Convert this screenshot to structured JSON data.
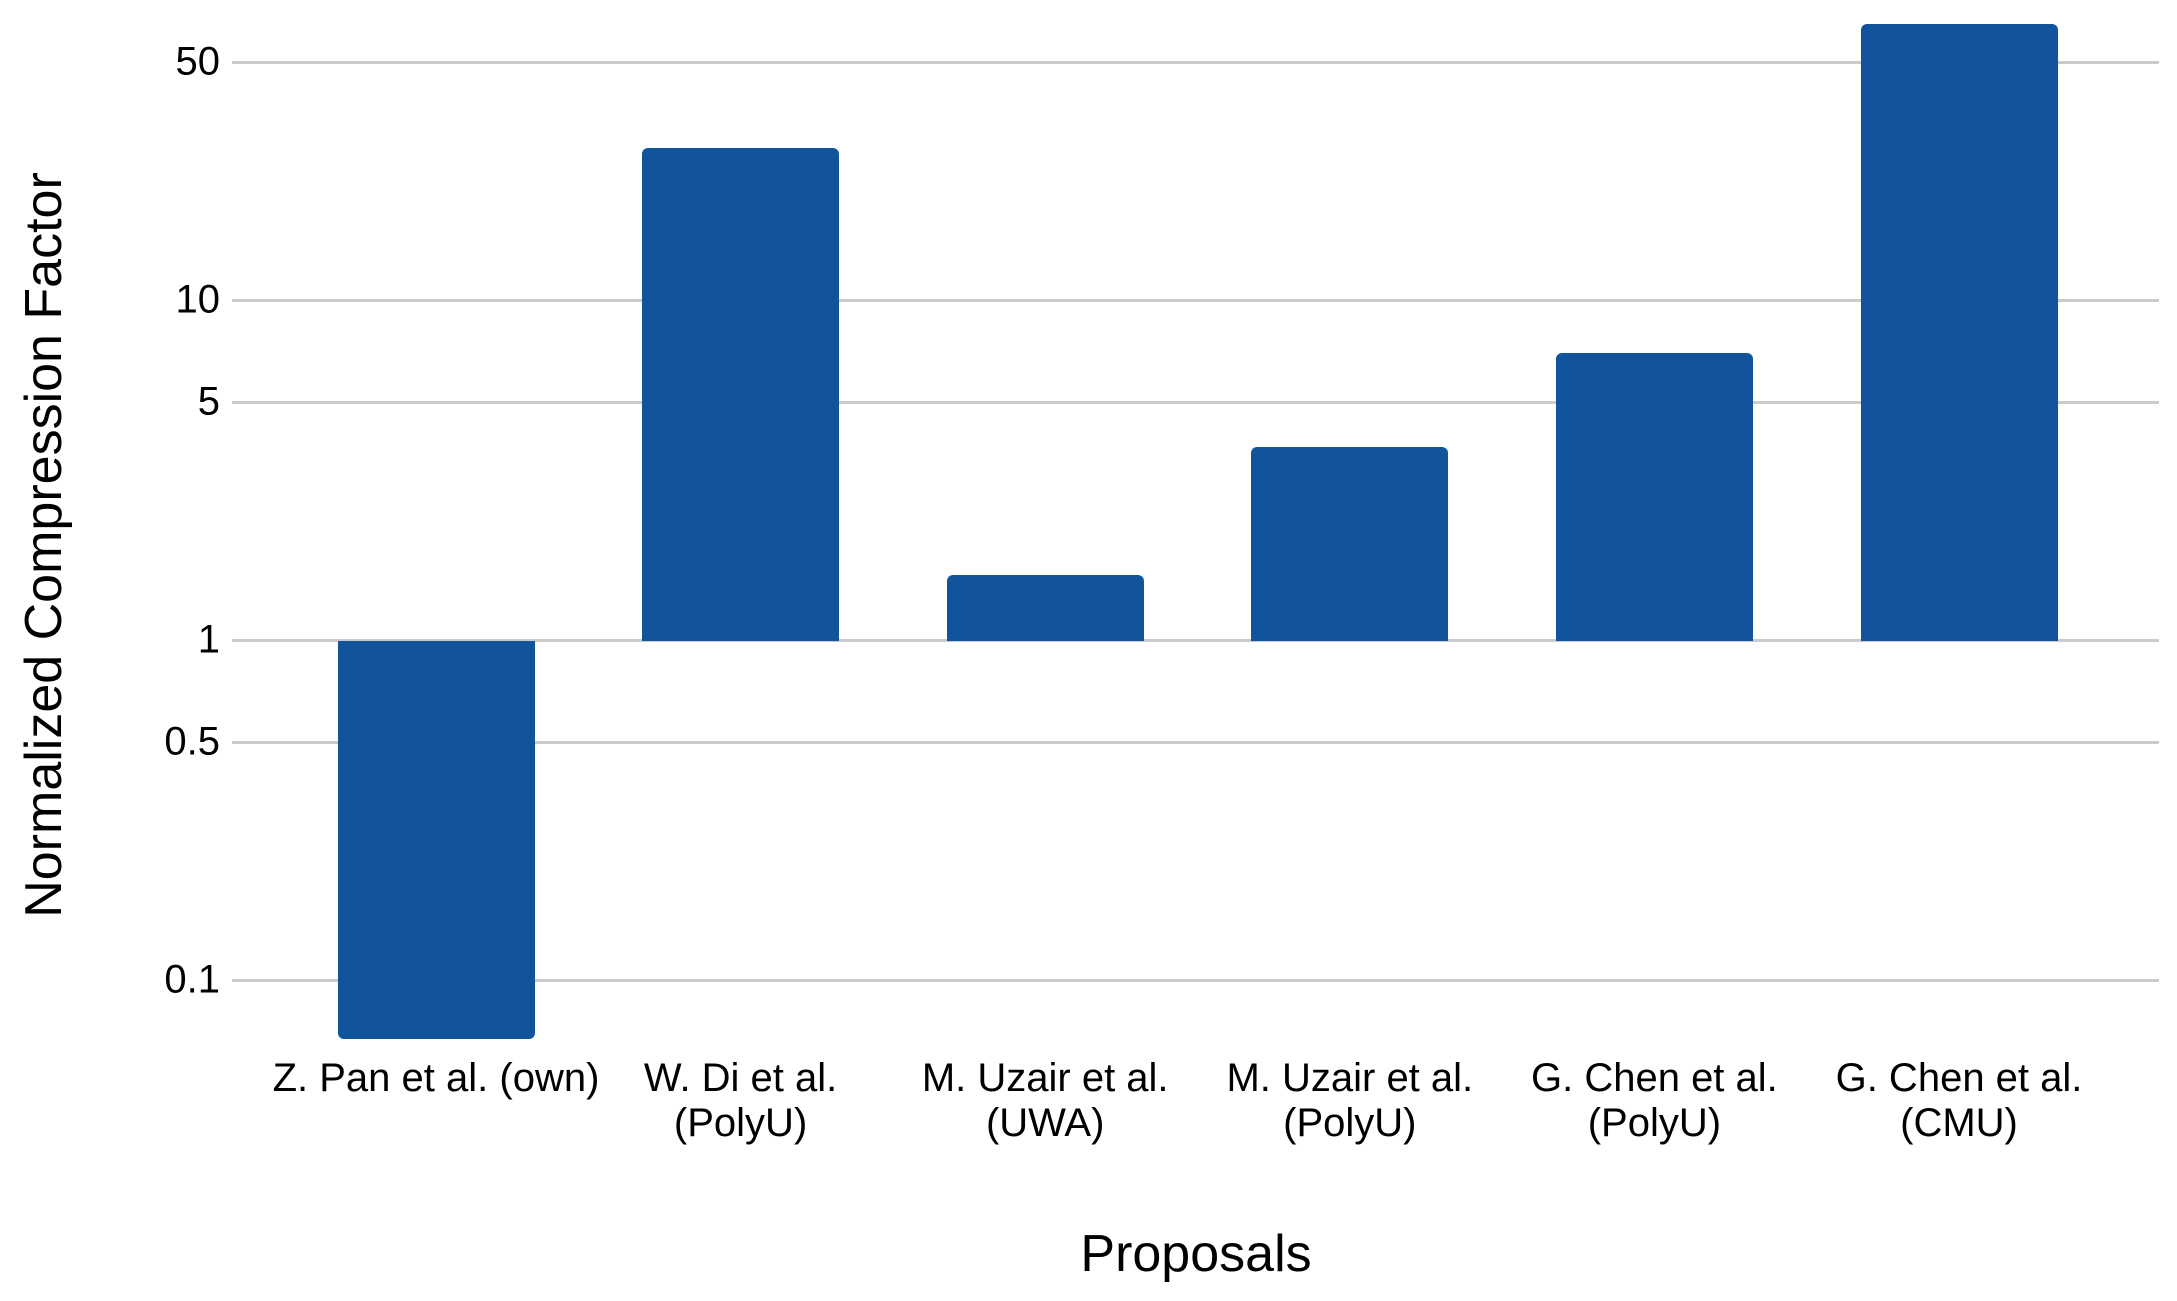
{
  "chart_data": {
    "type": "bar",
    "title": "",
    "xlabel": "Proposals",
    "ylabel": "Normalized Compression Factor",
    "yscale": "log",
    "baseline": 1,
    "ylim": [
      0.067,
      70
    ],
    "grid": true,
    "legend": "none",
    "ytick_values": [
      50,
      10,
      5,
      1,
      0.5,
      0.1
    ],
    "ytick_labels": [
      "50",
      "10",
      "5",
      "1",
      "0.5",
      "0.1"
    ],
    "categories": [
      [
        "Z. Pan et al. (own)"
      ],
      [
        "W. Di et al.",
        "(PolyU)"
      ],
      [
        "M. Uzair et al.",
        "(UWA)"
      ],
      [
        "M. Uzair et al.",
        "(PolyU)"
      ],
      [
        "G. Chen et al.",
        "(PolyU)"
      ],
      [
        "G. Chen et al.",
        "(CMU)"
      ]
    ],
    "values": [
      0.067,
      28,
      1.55,
      3.7,
      7,
      65
    ],
    "bar_color": "#12549B",
    "gridline_color": "#CBCBCB",
    "text_color": "#000000"
  }
}
